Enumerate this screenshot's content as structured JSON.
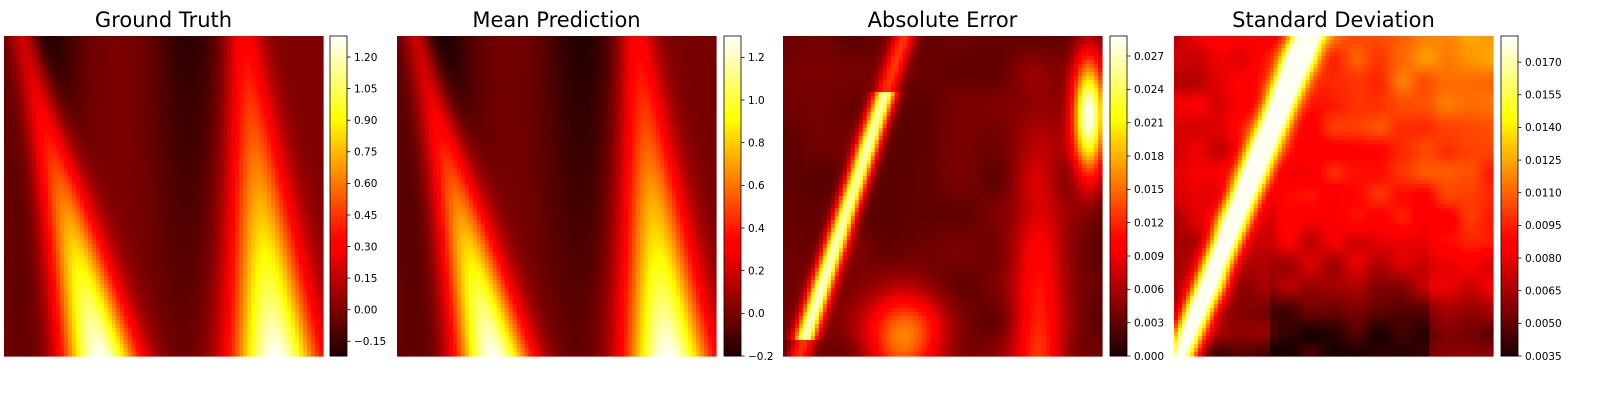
{
  "chart_data": [
    {
      "type": "heatmap",
      "title": "Ground Truth",
      "colormap": "hot",
      "axes_visible": false,
      "colorbar": {
        "min": -0.22,
        "max": 1.3,
        "ticks": [
          -0.15,
          0.0,
          0.15,
          0.3,
          0.45,
          0.6,
          0.75,
          0.9,
          1.05,
          1.2
        ],
        "tick_labels": [
          "−0.15",
          "0.00",
          "0.15",
          "0.30",
          "0.45",
          "0.60",
          "0.75",
          "0.90",
          "1.05",
          "1.20"
        ]
      },
      "field": "ground_truth"
    },
    {
      "type": "heatmap",
      "title": "Mean Prediction",
      "colormap": "hot",
      "axes_visible": false,
      "colorbar": {
        "min": -0.2,
        "max": 1.3,
        "ticks": [
          -0.2,
          0.0,
          0.2,
          0.4,
          0.6,
          0.8,
          1.0,
          1.2
        ],
        "tick_labels": [
          "−0.2",
          "0.0",
          "0.2",
          "0.4",
          "0.6",
          "0.8",
          "1.0",
          "1.2"
        ]
      },
      "field": "mean_prediction"
    },
    {
      "type": "heatmap",
      "title": "Absolute Error",
      "colormap": "hot",
      "axes_visible": false,
      "colorbar": {
        "min": 0.0,
        "max": 0.0288,
        "ticks": [
          0.0,
          0.003,
          0.006,
          0.009,
          0.012,
          0.015,
          0.018,
          0.021,
          0.024,
          0.027
        ],
        "tick_labels": [
          "0.000",
          "0.003",
          "0.006",
          "0.009",
          "0.012",
          "0.015",
          "0.018",
          "0.021",
          "0.024",
          "0.027"
        ]
      },
      "field": "absolute_error"
    },
    {
      "type": "heatmap",
      "title": "Standard Deviation",
      "colormap": "hot",
      "axes_visible": false,
      "colorbar": {
        "min": 0.0035,
        "max": 0.0182,
        "ticks": [
          0.0035,
          0.005,
          0.0065,
          0.008,
          0.0095,
          0.011,
          0.0125,
          0.014,
          0.0155,
          0.017
        ],
        "tick_labels": [
          "0.0035",
          "0.0050",
          "0.0065",
          "0.0080",
          "0.0095",
          "0.0110",
          "0.0125",
          "0.0140",
          "0.0155",
          "0.0170"
        ]
      },
      "field": "standard_deviation"
    }
  ]
}
